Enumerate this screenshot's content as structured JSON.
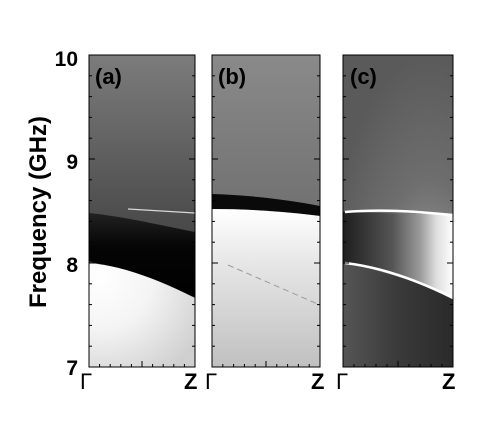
{
  "chart_data": {
    "type": "heatmap",
    "ylabel": "Frequency (GHz)",
    "y_ticks": [
      "7",
      "8",
      "9",
      "10"
    ],
    "ylim": [
      7,
      10
    ],
    "x_tick_start": "Γ",
    "x_tick_end": "Z",
    "panels": [
      {
        "label": "(a)",
        "x_ticks": [
          "Γ",
          "Z"
        ],
        "curves": [
          {
            "name": "lower band edge",
            "x": [
              0,
              0.25,
              0.5,
              0.75,
              1
            ],
            "y": [
              7.98,
              7.95,
              7.87,
              7.75,
              7.6
            ]
          },
          {
            "name": "upper thin line",
            "x": [
              0.3,
              1
            ],
            "y": [
              8.51,
              8.47
            ]
          }
        ]
      },
      {
        "label": "(b)",
        "x_ticks": [
          "Γ",
          "Z"
        ],
        "curves": [
          {
            "name": "band edge",
            "x": [
              0,
              0.5,
              1
            ],
            "y": [
              8.5,
              8.49,
              8.45
            ]
          },
          {
            "name": "faint line",
            "x": [
              0.15,
              1
            ],
            "y": [
              7.98,
              7.6
            ]
          }
        ]
      },
      {
        "label": "(c)",
        "x_ticks": [
          "Γ",
          "Z"
        ],
        "curves": [
          {
            "name": "upper bright line",
            "x": [
              0,
              0.3,
              0.6,
              1
            ],
            "y": [
              8.49,
              8.48,
              8.45,
              8.45
            ]
          },
          {
            "name": "lower bright line",
            "x": [
              0,
              0.3,
              0.6,
              1
            ],
            "y": [
              8.0,
              7.95,
              7.82,
              7.58
            ]
          }
        ]
      }
    ]
  }
}
